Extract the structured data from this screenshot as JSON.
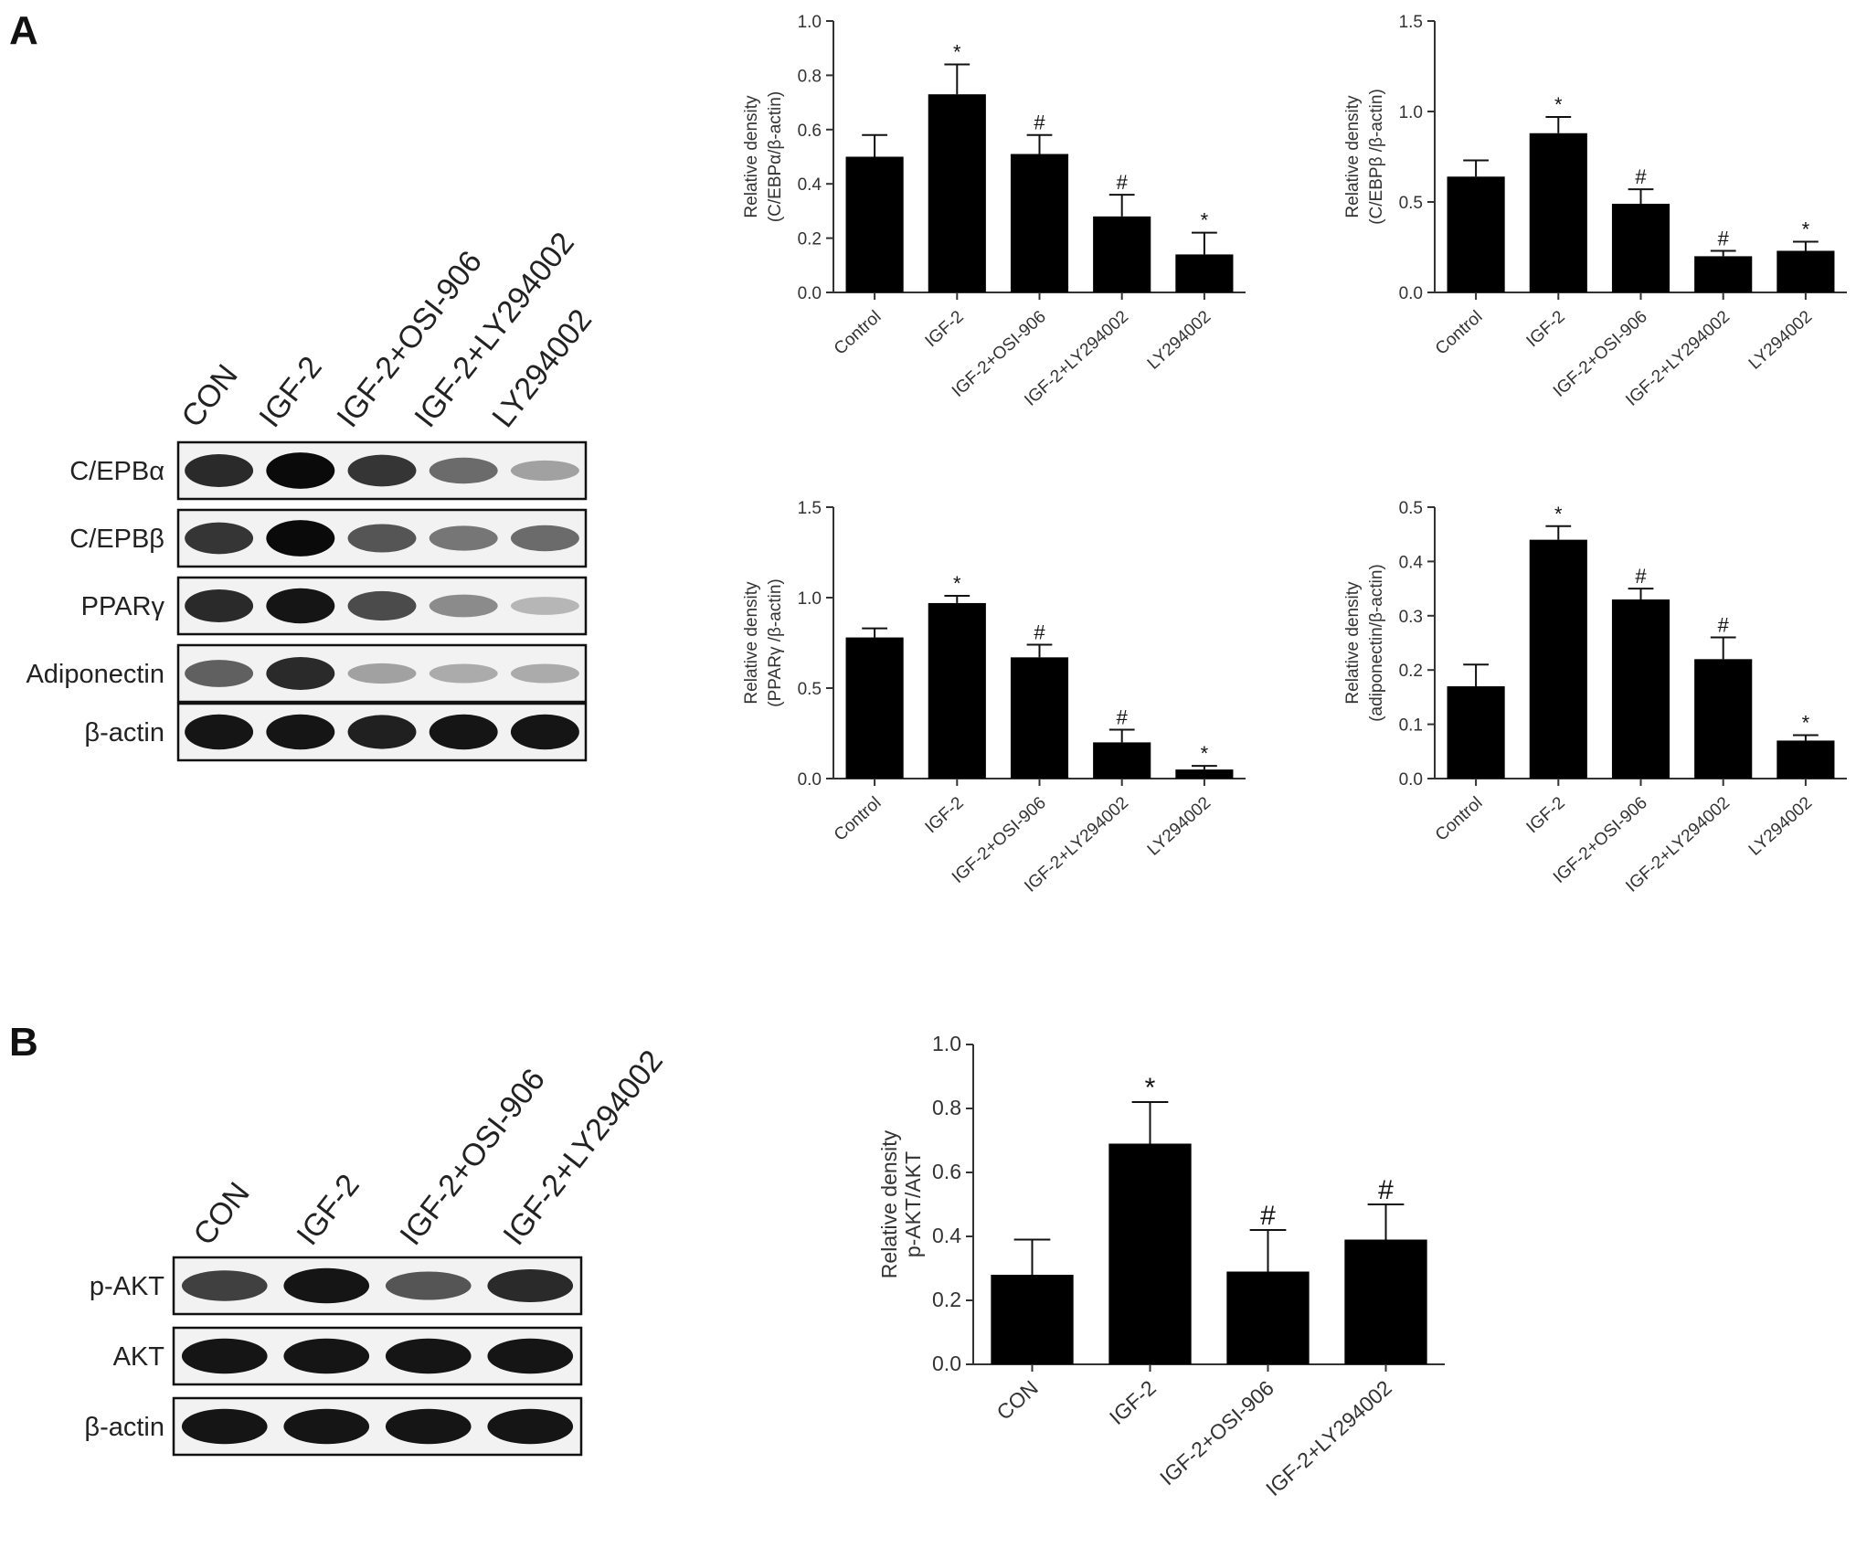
{
  "panels": [
    {
      "label": "A",
      "blot": {
        "lanes": [
          "CON",
          "IGF-2",
          "IGF-2+OSI-906",
          "IGF-2+LY294002",
          "LY294002"
        ],
        "rows": [
          {
            "label": "C/EPBα",
            "intensities": [
              0.85,
              1.0,
              0.8,
              0.55,
              0.3
            ]
          },
          {
            "label": "C/EPBβ",
            "intensities": [
              0.8,
              1.0,
              0.65,
              0.5,
              0.55
            ]
          },
          {
            "label": "PPARγ",
            "intensities": [
              0.85,
              0.95,
              0.7,
              0.4,
              0.2
            ]
          },
          {
            "label": "Adiponectin",
            "intensities": [
              0.6,
              0.85,
              0.3,
              0.25,
              0.25
            ]
          },
          {
            "label": "β-actin",
            "intensities": [
              0.95,
              0.95,
              0.9,
              0.95,
              0.95
            ]
          }
        ]
      }
    },
    {
      "label": "B",
      "blot": {
        "lanes": [
          "CON",
          "IGF-2",
          "IGF-2+OSI-906",
          "IGF-2+LY294002"
        ],
        "rows": [
          {
            "label": "p-AKT",
            "intensities": [
              0.75,
              0.95,
              0.65,
              0.85
            ]
          },
          {
            "label": "AKT",
            "intensities": [
              0.95,
              0.95,
              0.95,
              0.95
            ]
          },
          {
            "label": "β-actin",
            "intensities": [
              0.95,
              0.95,
              0.95,
              0.95
            ]
          }
        ]
      }
    }
  ],
  "chart_data": [
    {
      "type": "bar",
      "panel": "A",
      "ylabel_lines": [
        "Relative density",
        "(C/EBPα/β-actin)"
      ],
      "categories": [
        "Control",
        "IGF-2",
        "IGF-2+OSI-906",
        "IGF-2+LY294002",
        "LY294002"
      ],
      "values": [
        0.5,
        0.73,
        0.51,
        0.28,
        0.14
      ],
      "errors": [
        0.08,
        0.11,
        0.07,
        0.08,
        0.08
      ],
      "significance": [
        "",
        "*",
        "#",
        "#",
        "*"
      ],
      "ylim": [
        0,
        1.0
      ],
      "yticks": [
        "0.0",
        "0.2",
        "0.4",
        "0.6",
        "0.8",
        "1.0"
      ]
    },
    {
      "type": "bar",
      "panel": "A",
      "ylabel_lines": [
        "Relative density",
        "(C/EBPβ /β-actin)"
      ],
      "categories": [
        "Control",
        "IGF-2",
        "IGF-2+OSI-906",
        "IGF-2+LY294002",
        "LY294002"
      ],
      "values": [
        0.64,
        0.88,
        0.49,
        0.2,
        0.23
      ],
      "errors": [
        0.09,
        0.09,
        0.08,
        0.03,
        0.05
      ],
      "significance": [
        "",
        "*",
        "#",
        "#",
        "*"
      ],
      "ylim": [
        0,
        1.5
      ],
      "yticks": [
        "0.0",
        "0.5",
        "1.0",
        "1.5"
      ]
    },
    {
      "type": "bar",
      "panel": "A",
      "ylabel_lines": [
        "Relative density",
        "(PPARγ /β-actin)"
      ],
      "categories": [
        "Control",
        "IGF-2",
        "IGF-2+OSI-906",
        "IGF-2+LY294002",
        "LY294002"
      ],
      "values": [
        0.78,
        0.97,
        0.67,
        0.2,
        0.05
      ],
      "errors": [
        0.05,
        0.04,
        0.07,
        0.07,
        0.02
      ],
      "significance": [
        "",
        "*",
        "#",
        "#",
        "*"
      ],
      "ylim": [
        0,
        1.5
      ],
      "yticks": [
        "0.0",
        "0.5",
        "1.0",
        "1.5"
      ]
    },
    {
      "type": "bar",
      "panel": "A",
      "ylabel_lines": [
        "Relative density",
        "(adiponectin/β-actin)"
      ],
      "categories": [
        "Control",
        "IGF-2",
        "IGF-2+OSI-906",
        "IGF-2+LY294002",
        "LY294002"
      ],
      "values": [
        0.17,
        0.44,
        0.33,
        0.22,
        0.07
      ],
      "errors": [
        0.04,
        0.025,
        0.02,
        0.04,
        0.01
      ],
      "significance": [
        "",
        "*",
        "#",
        "#",
        "*"
      ],
      "ylim": [
        0,
        0.5
      ],
      "yticks": [
        "0.0",
        "0.1",
        "0.2",
        "0.3",
        "0.4",
        "0.5"
      ]
    },
    {
      "type": "bar",
      "panel": "B",
      "ylabel_lines": [
        "Relative density",
        "p-AKT/AKT"
      ],
      "categories": [
        "CON",
        "IGF-2",
        "IGF-2+OSI-906",
        "IGF-2+LY294002"
      ],
      "values": [
        0.28,
        0.69,
        0.29,
        0.39
      ],
      "errors": [
        0.11,
        0.13,
        0.13,
        0.11
      ],
      "significance": [
        "",
        "*",
        "#",
        "#"
      ],
      "ylim": [
        0,
        1.0
      ],
      "yticks": [
        "0.0",
        "0.2",
        "0.4",
        "0.6",
        "0.8",
        "1.0"
      ]
    }
  ]
}
